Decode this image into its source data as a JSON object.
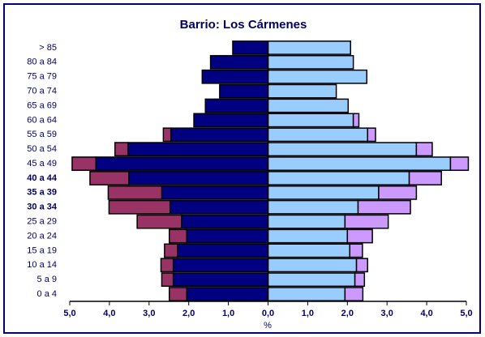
{
  "chart_data": {
    "type": "pyramid",
    "title": "Barrio: Los Cármenes",
    "x_label": "%",
    "categories": [
      "> 85",
      "80 a 84",
      "75 a 79",
      "70 a 74",
      "65 a 69",
      "60 a 64",
      "55 a 59",
      "50 a 54",
      "45 a 49",
      "40 a 44",
      "35 a 39",
      "30 a 34",
      "25 a 29",
      "20 a 24",
      "15 a 19",
      "10 a 14",
      "5 a 9",
      "0 a 4"
    ],
    "bold_categories": [
      9,
      10,
      11
    ],
    "series": [
      {
        "color": "#000080",
        "side": "left",
        "values": [
          0.89,
          1.45,
          1.66,
          1.22,
          1.58,
          1.87,
          2.45,
          3.53,
          4.34,
          3.51,
          2.68,
          2.47,
          2.18,
          2.05,
          2.28,
          2.39,
          2.39,
          2.05
        ]
      },
      {
        "color": "#993366",
        "side": "left",
        "values": [
          0,
          0,
          0,
          0,
          0,
          0,
          0.19,
          0.33,
          0.6,
          0.98,
          1.35,
          1.54,
          1.12,
          0.44,
          0.33,
          0.31,
          0.29,
          0.44
        ]
      },
      {
        "color": "#99ccff",
        "side": "right",
        "values": [
          2.08,
          2.15,
          2.49,
          1.72,
          2.02,
          2.15,
          2.51,
          3.74,
          4.6,
          3.56,
          2.79,
          2.27,
          1.94,
          2.0,
          2.06,
          2.23,
          2.19,
          1.94
        ]
      },
      {
        "color": "#cc99ff",
        "side": "right",
        "values": [
          0,
          0,
          0,
          0,
          0,
          0.14,
          0.2,
          0.4,
          0.45,
          0.81,
          0.95,
          1.32,
          1.09,
          0.63,
          0.32,
          0.28,
          0.24,
          0.45
        ]
      }
    ],
    "xlim": [
      -5,
      5
    ],
    "xticks": [
      {
        "value": -5,
        "label": "5,0"
      },
      {
        "value": -4,
        "label": "4,0"
      },
      {
        "value": -3,
        "label": "3,0"
      },
      {
        "value": -2,
        "label": "2,0"
      },
      {
        "value": -1,
        "label": "1,0"
      },
      {
        "value": 0,
        "label": "0,0"
      },
      {
        "value": 1,
        "label": "1,0"
      },
      {
        "value": 2,
        "label": "2,0"
      },
      {
        "value": 3,
        "label": "3,0"
      },
      {
        "value": 4,
        "label": "4,0"
      },
      {
        "value": 5,
        "label": "5,0"
      }
    ]
  }
}
